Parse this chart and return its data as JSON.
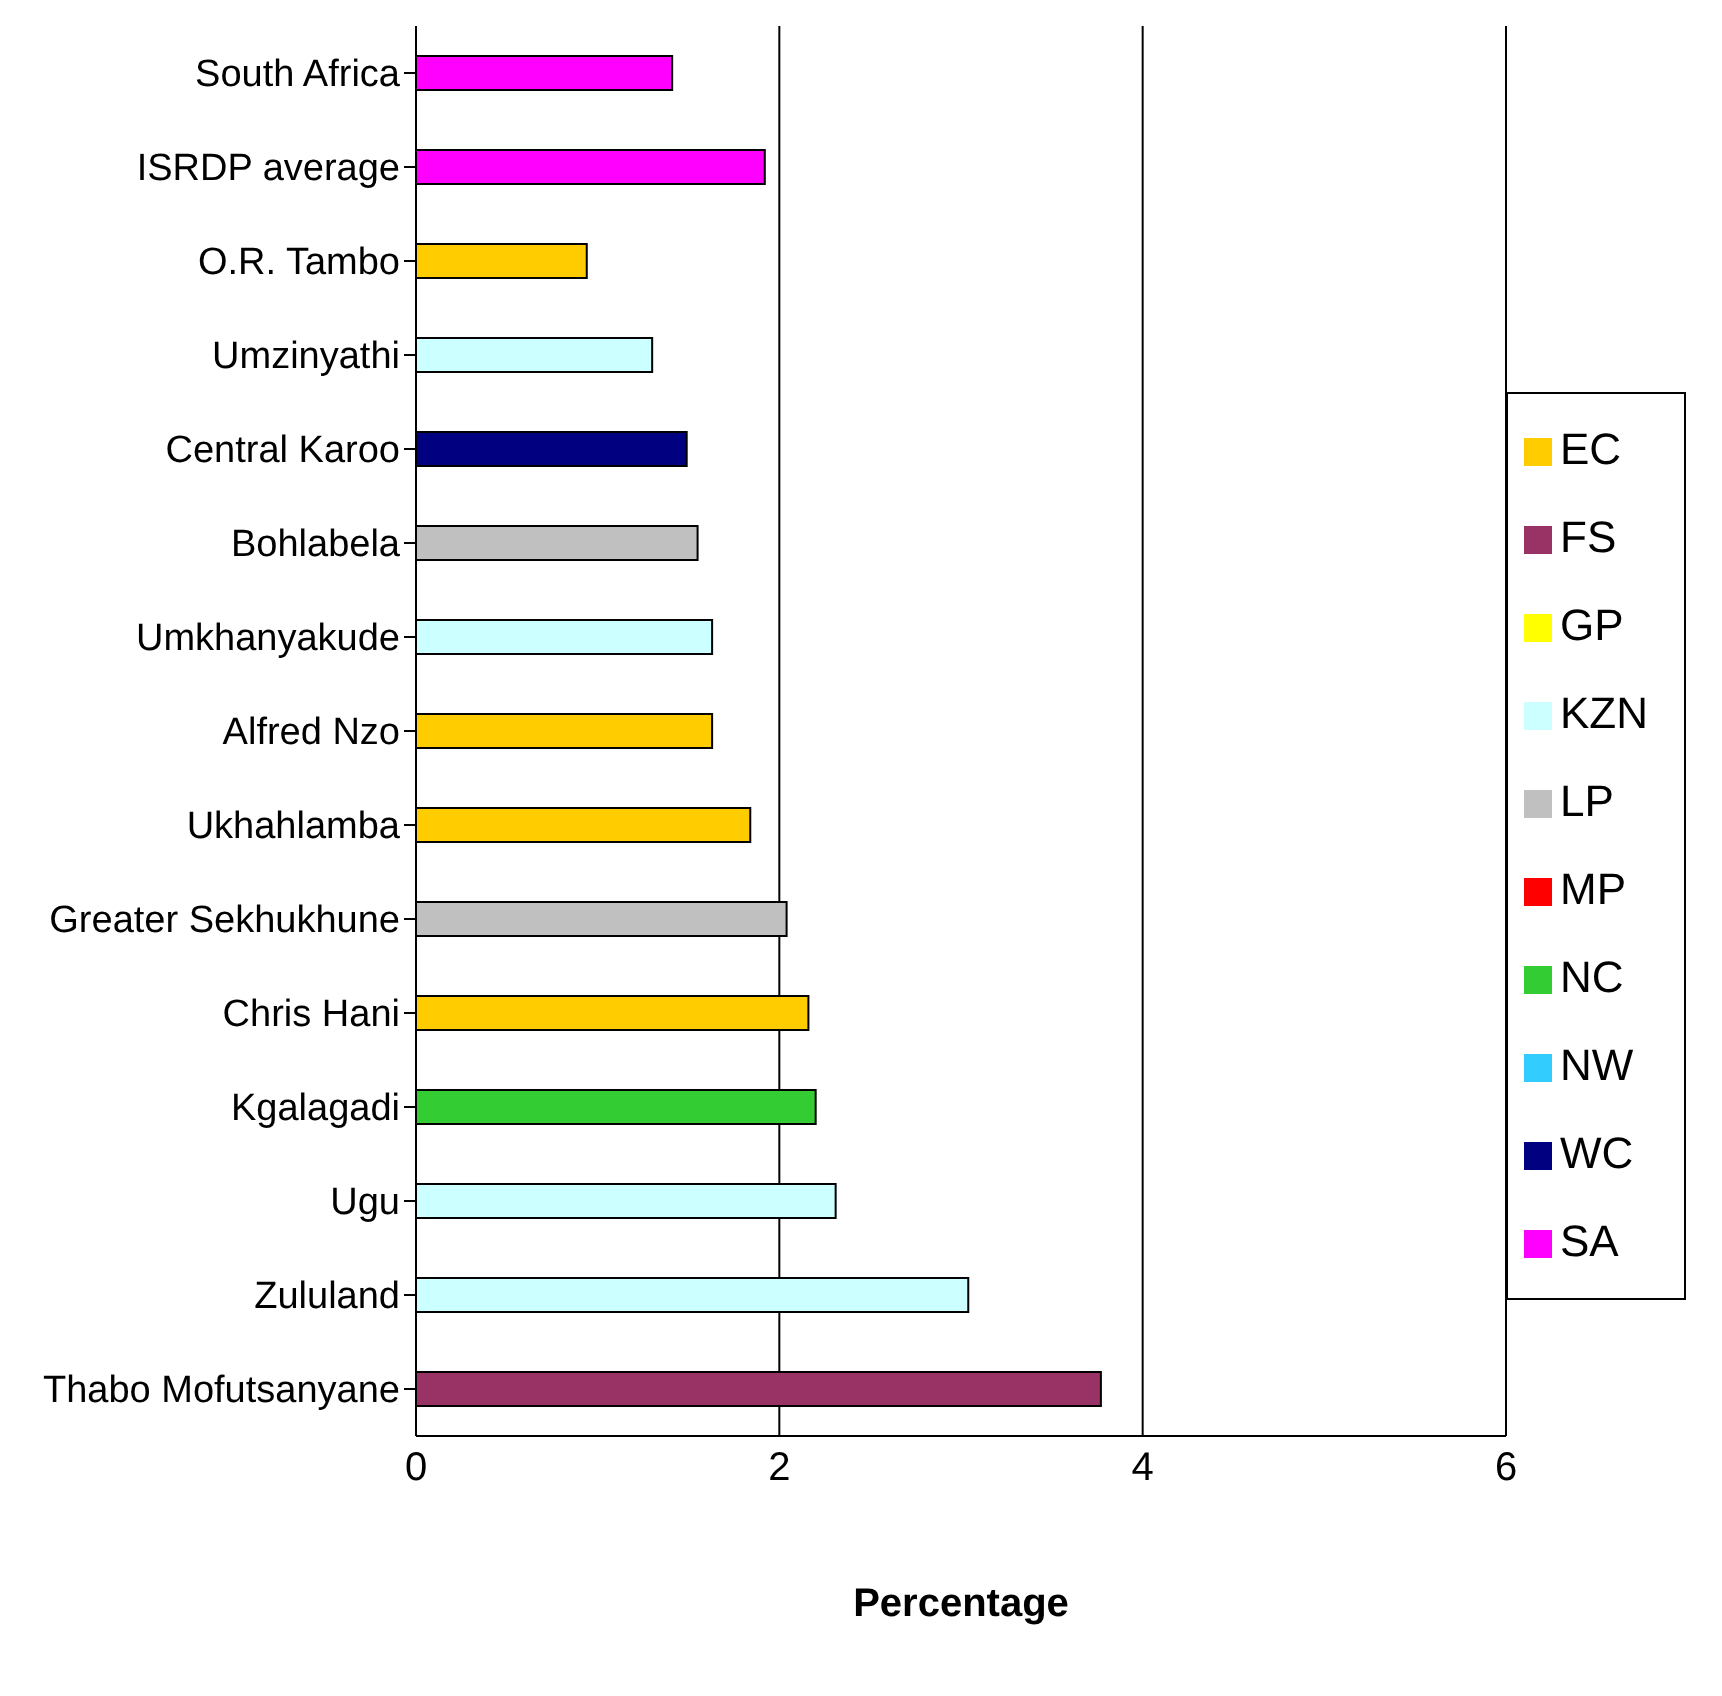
{
  "chart_data": {
    "type": "bar",
    "orientation": "horizontal",
    "stacked": true,
    "xlabel": "Percentage",
    "categories": [
      "South Africa",
      "ISRDP average",
      "O.R. Tambo",
      "Umzinyathi",
      "Central Karoo",
      "Bohlabela",
      "Umkhanyakude",
      "Alfred Nzo",
      "Ukhahlamba",
      "Greater Sekhukhune",
      "Chris Hani",
      "Kgalagadi",
      "Ugu",
      "Zululand",
      "Thabo Mofutsanyane"
    ],
    "series": [
      {
        "name": "EC",
        "color": "#ffcc00",
        "values": [
          null,
          null,
          0.94,
          null,
          null,
          null,
          null,
          1.63,
          1.84,
          null,
          2.16,
          null,
          null,
          null,
          null
        ]
      },
      {
        "name": "FS",
        "color": "#993366",
        "values": [
          null,
          null,
          null,
          null,
          null,
          null,
          null,
          null,
          null,
          null,
          null,
          null,
          null,
          null,
          3.77
        ]
      },
      {
        "name": "GP",
        "color": "#ffff00",
        "values": [
          null,
          null,
          null,
          null,
          null,
          null,
          null,
          null,
          null,
          null,
          null,
          null,
          null,
          null,
          null
        ]
      },
      {
        "name": "KZN",
        "color": "#ccffff",
        "values": [
          null,
          null,
          null,
          1.3,
          null,
          null,
          1.63,
          null,
          null,
          null,
          null,
          null,
          2.31,
          3.04,
          null
        ]
      },
      {
        "name": "LP",
        "color": "#c0c0c0",
        "values": [
          null,
          null,
          null,
          null,
          null,
          1.55,
          null,
          null,
          null,
          2.04,
          null,
          null,
          null,
          null,
          null
        ]
      },
      {
        "name": "MP",
        "color": "#ff0000",
        "values": [
          null,
          null,
          null,
          null,
          null,
          null,
          null,
          null,
          null,
          null,
          null,
          null,
          null,
          null,
          null
        ]
      },
      {
        "name": "NC",
        "color": "#33cc33",
        "values": [
          null,
          null,
          null,
          null,
          null,
          null,
          null,
          null,
          null,
          null,
          null,
          2.2,
          null,
          null,
          null
        ]
      },
      {
        "name": "NW",
        "color": "#33ccff",
        "values": [
          null,
          null,
          null,
          null,
          null,
          null,
          null,
          null,
          null,
          null,
          null,
          null,
          null,
          null,
          null
        ]
      },
      {
        "name": "WC",
        "color": "#000080",
        "values": [
          null,
          null,
          null,
          null,
          1.49,
          null,
          null,
          null,
          null,
          null,
          null,
          null,
          null,
          null,
          null
        ]
      },
      {
        "name": "SA",
        "color": "#ff00ff",
        "values": [
          1.41,
          1.92,
          null,
          null,
          null,
          null,
          null,
          null,
          null,
          null,
          null,
          null,
          null,
          null,
          null
        ]
      }
    ],
    "xlim": [
      0,
      6
    ],
    "xticks": [
      0,
      2,
      4,
      6
    ],
    "grid": "x",
    "legend": "right"
  }
}
